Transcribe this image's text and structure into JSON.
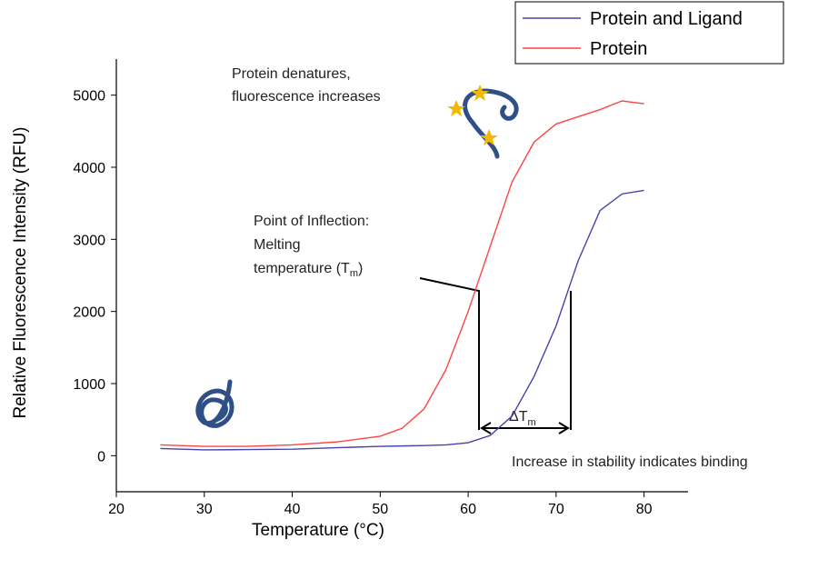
{
  "chart_data": {
    "type": "line",
    "xlabel": "Temperature (°C)",
    "ylabel": "Relative Fluorescence Intensity (RFU)",
    "x": [
      25,
      30,
      35,
      40,
      45,
      50,
      52.5,
      55,
      57.5,
      60,
      62.5,
      65,
      67.5,
      70,
      72.5,
      75,
      77.5,
      80
    ],
    "series": [
      {
        "name": "Protein and Ligand",
        "color": "#4444aa",
        "values": [
          100,
          80,
          85,
          90,
          110,
          130,
          135,
          140,
          150,
          180,
          280,
          550,
          1100,
          1800,
          2700,
          3400,
          3630,
          3680
        ]
      },
      {
        "name": "Protein",
        "color": "#ff4444",
        "values": [
          150,
          130,
          130,
          150,
          190,
          270,
          380,
          650,
          1200,
          2000,
          2900,
          3800,
          4350,
          4600,
          4700,
          4800,
          4920,
          4880
        ]
      }
    ],
    "xlim": [
      20,
      85
    ],
    "xticks": [
      20,
      30,
      40,
      50,
      60,
      70,
      80
    ],
    "ylim": [
      -500,
      5500
    ],
    "yticks": [
      0,
      1000,
      2000,
      3000,
      4000,
      5000
    ],
    "legend": "top-right",
    "annotations": [
      "Protein denatures,",
      "fluorescence increases",
      "Point of Inflection:",
      "Melting",
      "temperature (T",
      "m",
      ")",
      "ΔT",
      "m",
      "Increase in stability indicates binding"
    ]
  }
}
